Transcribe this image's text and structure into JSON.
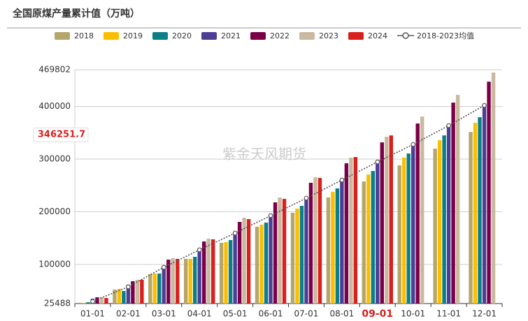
{
  "chart_data": {
    "type": "bar",
    "title": "全国原煤产量累计值（万吨）",
    "watermark": "紫金天风期货",
    "categories": [
      "01-01",
      "02-01",
      "03-01",
      "04-01",
      "05-01",
      "06-01",
      "07-01",
      "08-01",
      "09-01",
      "10-01",
      "11-01",
      "12-01"
    ],
    "highlight": "09-01",
    "crosshair": 346251.7,
    "ylim": [
      25488,
      469802
    ],
    "yticks": [
      25488,
      100000,
      200000,
      300000,
      400000,
      469802
    ],
    "grid": true,
    "series": [
      {
        "name": "2018",
        "color": "#b5a66b",
        "values": [
          27000,
          52000,
          81200,
          110400,
          140900,
          171400,
          197900,
          227100,
          257600,
          288100,
          319900,
          351700
        ]
      },
      {
        "name": "2019",
        "color": "#fbbf00",
        "values": [
          27000,
          53300,
          82500,
          110400,
          142200,
          175400,
          205900,
          237700,
          270900,
          302700,
          335800,
          369000
        ]
      },
      {
        "name": "2020",
        "color": "#0b7f86",
        "values": [
          28000,
          49400,
          82500,
          114300,
          146200,
          179300,
          211200,
          244300,
          277500,
          310700,
          345100,
          379600
        ]
      },
      {
        "name": "2021",
        "color": "#4b3f95",
        "values": [
          34800,
          61300,
          94400,
          127600,
          162100,
          193900,
          225800,
          258900,
          292100,
          327900,
          363700,
          400800
        ]
      },
      {
        "name": "2022",
        "color": "#7b0049",
        "values": [
          37400,
          67900,
          109000,
          143500,
          180700,
          217800,
          255000,
          292100,
          331800,
          367700,
          407400,
          447200
        ]
      },
      {
        "name": "2023",
        "color": "#c9b99e",
        "values": [
          37400,
          70600,
          111700,
          148800,
          188600,
          227100,
          265500,
          302700,
          342500,
          380900,
          422000,
          464500
        ]
      },
      {
        "name": "2024",
        "color": "#d9201e",
        "values": [
          36100,
          70600,
          110400,
          147500,
          186000,
          224400,
          264200,
          304000,
          345100,
          null,
          null,
          null
        ]
      },
      {
        "name": "2018-2023均值",
        "type": "line",
        "color": "#555555",
        "values": [
          29500,
          57300,
          94400,
          127600,
          159400,
          192600,
          225800,
          260200,
          294700,
          327900,
          363700,
          402100
        ]
      }
    ]
  }
}
